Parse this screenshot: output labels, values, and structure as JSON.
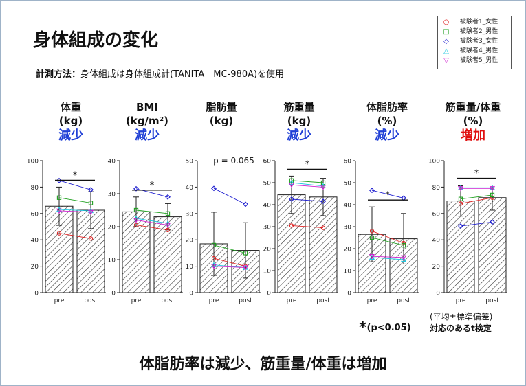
{
  "slide": {
    "title": "身体組成の変化",
    "method_label": "計測方法：",
    "method_text": "身体組成は身体組成計(TANITA　MC-980A)を使用",
    "conclusion": "体脂肪率は減少、筋重量/体重は増加",
    "sig_note_prefix": "*",
    "sig_note": "(p<0.05)",
    "stats_note_1": "(平均±標準偏差)",
    "stats_note_2": "対応のあるt検定"
  },
  "legend": [
    {
      "label": "被験者1_女性",
      "color": "#e02020",
      "marker": "circle"
    },
    {
      "label": "被験者2_男性",
      "color": "#20a020",
      "marker": "square"
    },
    {
      "label": "被験者3_女性",
      "color": "#2020d0",
      "marker": "diamond"
    },
    {
      "label": "被験者4_男性",
      "color": "#20c8e0",
      "marker": "triangle-up"
    },
    {
      "label": "被験者5_男性",
      "color": "#d020d0",
      "marker": "triangle-down"
    }
  ],
  "chart_data": [
    {
      "type": "bar",
      "title": "体重",
      "unit": "(kg)",
      "change": "減少",
      "change_dir": "down",
      "categories": [
        "pre",
        "post"
      ],
      "values": [
        65.5,
        62.5
      ],
      "sd": [
        14.5,
        14.0
      ],
      "ylim": [
        0,
        100
      ],
      "yticks": [
        0,
        20,
        40,
        60,
        80,
        100
      ],
      "significance": "*",
      "pvalue_label": "",
      "subjects": [
        [
          45,
          41
        ],
        [
          72,
          68
        ],
        [
          85,
          78
        ],
        [
          63,
          62
        ],
        [
          62,
          61
        ]
      ]
    },
    {
      "type": "bar",
      "title": "BMI",
      "unit": "(kg/m²)",
      "change": "減少",
      "change_dir": "down",
      "categories": [
        "pre",
        "post"
      ],
      "values": [
        24.5,
        23.0
      ],
      "sd": [
        4.5,
        4.0
      ],
      "ylim": [
        0,
        40
      ],
      "yticks": [
        0,
        10,
        20,
        30,
        40
      ],
      "significance": "*",
      "pvalue_label": "",
      "subjects": [
        [
          20.5,
          19
        ],
        [
          25,
          24
        ],
        [
          31.5,
          29
        ],
        [
          22.5,
          21
        ],
        [
          22,
          20.5
        ]
      ]
    },
    {
      "type": "bar",
      "title": "脂肪量",
      "unit": "(kg)",
      "change": "",
      "change_dir": "",
      "categories": [
        "pre",
        "post"
      ],
      "values": [
        18.5,
        16.0
      ],
      "sd": [
        12.0,
        10.5
      ],
      "ylim": [
        0,
        50
      ],
      "yticks": [
        0,
        10,
        20,
        30,
        40,
        50
      ],
      "significance": "",
      "pvalue_label": "p = 0.065",
      "subjects": [
        [
          13,
          10
        ],
        [
          18,
          15
        ],
        [
          39.5,
          33.5
        ],
        [
          10.5,
          9.5
        ],
        [
          10,
          9.5
        ]
      ]
    },
    {
      "type": "bar",
      "title": "筋重量",
      "unit": "(kg)",
      "change": "減少",
      "change_dir": "down",
      "categories": [
        "pre",
        "post"
      ],
      "values": [
        44.5,
        43.5
      ],
      "sd": [
        8.5,
        8.5
      ],
      "ylim": [
        0,
        60
      ],
      "yticks": [
        0,
        10,
        20,
        30,
        40,
        50,
        60
      ],
      "significance": "*",
      "pvalue_label": "",
      "subjects": [
        [
          30.5,
          29.5
        ],
        [
          51,
          50
        ],
        [
          42.5,
          41.5
        ],
        [
          50,
          48.5
        ],
        [
          49,
          48
        ]
      ]
    },
    {
      "type": "bar",
      "title": "体脂肪率",
      "unit": "(%)",
      "change": "減少",
      "change_dir": "down",
      "categories": [
        "pre",
        "post"
      ],
      "values": [
        26.5,
        24.5
      ],
      "sd": [
        12.5,
        11.5
      ],
      "ylim": [
        0,
        60
      ],
      "yticks": [
        0,
        10,
        20,
        30,
        40,
        50,
        60
      ],
      "significance": "*",
      "pvalue_label": "",
      "subjects": [
        [
          28,
          22.5
        ],
        [
          25,
          21.5
        ],
        [
          46.5,
          43
        ],
        [
          16,
          15
        ],
        [
          16.5,
          16
        ]
      ]
    },
    {
      "type": "bar",
      "title": "筋重量/体重",
      "unit": "(%)",
      "change": "増加",
      "change_dir": "up",
      "categories": [
        "pre",
        "post"
      ],
      "values": [
        69.5,
        72.0
      ],
      "sd": [
        11.5,
        9.5
      ],
      "ylim": [
        0,
        100
      ],
      "yticks": [
        0,
        20,
        40,
        60,
        80,
        100
      ],
      "significance": "*",
      "pvalue_label": "",
      "subjects": [
        [
          67.5,
          72
        ],
        [
          71,
          74
        ],
        [
          50.5,
          53.5
        ],
        [
          79.5,
          79.5
        ],
        [
          79,
          79
        ]
      ]
    }
  ]
}
